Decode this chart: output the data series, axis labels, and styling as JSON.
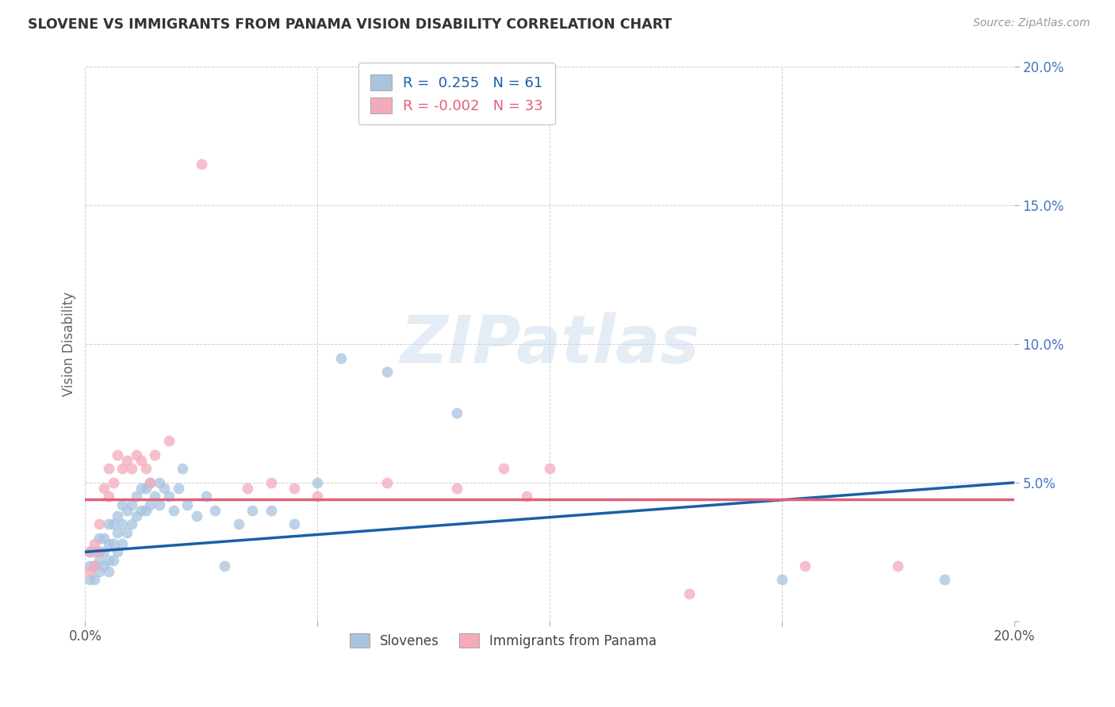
{
  "title": "SLOVENE VS IMMIGRANTS FROM PANAMA VISION DISABILITY CORRELATION CHART",
  "source": "Source: ZipAtlas.com",
  "ylabel": "Vision Disability",
  "xlim": [
    0.0,
    0.2
  ],
  "ylim": [
    0.0,
    0.2
  ],
  "yticks": [
    0.0,
    0.05,
    0.1,
    0.15,
    0.2
  ],
  "ytick_labels": [
    "",
    "5.0%",
    "10.0%",
    "15.0%",
    "20.0%"
  ],
  "legend_blue_r": "R =  0.255",
  "legend_blue_n": "N = 61",
  "legend_pink_r": "R = -0.002",
  "legend_pink_n": "N = 33",
  "blue_color": "#a8c4e0",
  "pink_color": "#f4aabb",
  "blue_line_color": "#1a5fa8",
  "pink_line_color": "#e0607a",
  "watermark": "ZIPatlas",
  "slovene_label": "Slovenes",
  "panama_label": "Immigrants from Panama",
  "blue_scatter_x": [
    0.001,
    0.001,
    0.001,
    0.002,
    0.002,
    0.002,
    0.003,
    0.003,
    0.003,
    0.003,
    0.004,
    0.004,
    0.004,
    0.005,
    0.005,
    0.005,
    0.005,
    0.006,
    0.006,
    0.006,
    0.007,
    0.007,
    0.007,
    0.008,
    0.008,
    0.008,
    0.009,
    0.009,
    0.01,
    0.01,
    0.011,
    0.011,
    0.012,
    0.012,
    0.013,
    0.013,
    0.014,
    0.014,
    0.015,
    0.016,
    0.016,
    0.017,
    0.018,
    0.019,
    0.02,
    0.021,
    0.022,
    0.024,
    0.026,
    0.028,
    0.03,
    0.033,
    0.036,
    0.04,
    0.045,
    0.05,
    0.055,
    0.065,
    0.08,
    0.15,
    0.185
  ],
  "blue_scatter_y": [
    0.015,
    0.02,
    0.025,
    0.015,
    0.02,
    0.025,
    0.018,
    0.022,
    0.025,
    0.03,
    0.02,
    0.025,
    0.03,
    0.018,
    0.022,
    0.028,
    0.035,
    0.022,
    0.028,
    0.035,
    0.025,
    0.032,
    0.038,
    0.028,
    0.035,
    0.042,
    0.032,
    0.04,
    0.035,
    0.042,
    0.038,
    0.045,
    0.04,
    0.048,
    0.04,
    0.048,
    0.042,
    0.05,
    0.045,
    0.042,
    0.05,
    0.048,
    0.045,
    0.04,
    0.048,
    0.055,
    0.042,
    0.038,
    0.045,
    0.04,
    0.02,
    0.035,
    0.04,
    0.04,
    0.035,
    0.05,
    0.095,
    0.09,
    0.075,
    0.015,
    0.015
  ],
  "pink_scatter_x": [
    0.001,
    0.001,
    0.002,
    0.002,
    0.003,
    0.003,
    0.004,
    0.005,
    0.005,
    0.006,
    0.007,
    0.008,
    0.009,
    0.01,
    0.011,
    0.012,
    0.013,
    0.014,
    0.015,
    0.018,
    0.025,
    0.035,
    0.04,
    0.045,
    0.05,
    0.065,
    0.08,
    0.09,
    0.095,
    0.1,
    0.13,
    0.155,
    0.175
  ],
  "pink_scatter_y": [
    0.018,
    0.025,
    0.02,
    0.028,
    0.025,
    0.035,
    0.048,
    0.045,
    0.055,
    0.05,
    0.06,
    0.055,
    0.058,
    0.055,
    0.06,
    0.058,
    0.055,
    0.05,
    0.06,
    0.065,
    0.165,
    0.048,
    0.05,
    0.048,
    0.045,
    0.05,
    0.048,
    0.055,
    0.045,
    0.055,
    0.01,
    0.02,
    0.02
  ],
  "blue_line_x0": 0.0,
  "blue_line_x1": 0.2,
  "blue_line_y0": 0.025,
  "blue_line_y1": 0.05,
  "pink_line_x0": 0.0,
  "pink_line_x1": 0.2,
  "pink_line_y0": 0.044,
  "pink_line_y1": 0.044
}
